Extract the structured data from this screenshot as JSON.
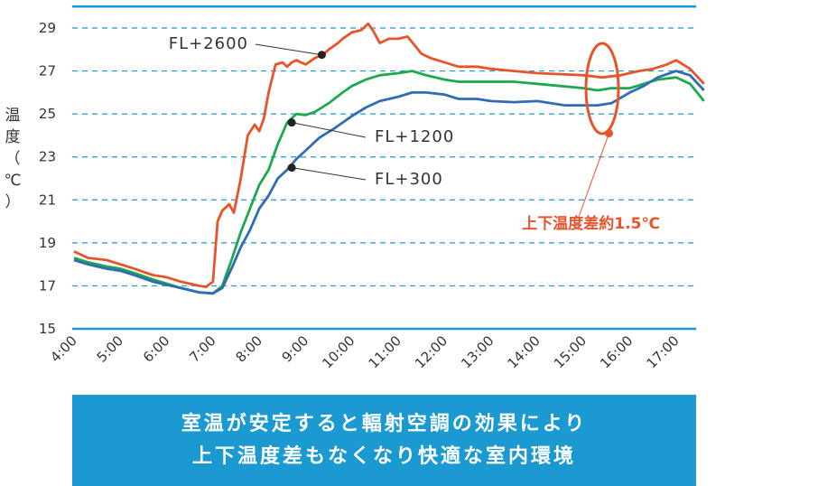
{
  "chart_data": {
    "type": "line",
    "ylabel": "温度（℃）",
    "ylim": [
      15,
      30
    ],
    "yticks": [
      "29",
      "27",
      "25",
      "23",
      "21",
      "19",
      "17",
      "15"
    ],
    "yticks_values": [
      29,
      27,
      25,
      23,
      21,
      19,
      17,
      15
    ],
    "xlim": [
      4,
      17.6
    ],
    "xticks": [
      "4:00",
      "5:00",
      "6:00",
      "7:00",
      "8:00",
      "9:00",
      "10:00",
      "11:00",
      "12:00",
      "13:00",
      "14:00",
      "15:00",
      "16:00",
      "17:00"
    ],
    "grid": "horizontal dashed",
    "series": [
      {
        "name": "FL+2600",
        "color": "#e8542a",
        "x": [
          4.0,
          4.3,
          4.7,
          5.0,
          5.3,
          5.7,
          6.0,
          6.3,
          6.7,
          6.85,
          7.0,
          7.1,
          7.2,
          7.35,
          7.45,
          7.6,
          7.75,
          7.9,
          8.0,
          8.1,
          8.2,
          8.35,
          8.5,
          8.6,
          8.7,
          8.8,
          9.0,
          9.2,
          9.4,
          9.5,
          9.7,
          9.8,
          10.0,
          10.2,
          10.35,
          10.45,
          10.6,
          10.8,
          11.0,
          11.2,
          11.5,
          11.7,
          12.0,
          12.3,
          12.7,
          13.0,
          13.5,
          14.0,
          14.5,
          15.0,
          15.4,
          15.8,
          16.2,
          16.5,
          16.8,
          17.0,
          17.3,
          17.6
        ],
        "values": [
          18.6,
          18.3,
          18.2,
          18.0,
          17.8,
          17.5,
          17.4,
          17.2,
          17.0,
          16.95,
          17.2,
          20.0,
          20.5,
          20.8,
          20.4,
          22.0,
          24.0,
          24.5,
          24.2,
          24.8,
          26.0,
          27.3,
          27.4,
          27.2,
          27.4,
          27.5,
          27.3,
          27.6,
          27.8,
          28.0,
          28.3,
          28.5,
          28.8,
          28.9,
          29.2,
          28.9,
          28.3,
          28.5,
          28.5,
          28.6,
          27.8,
          27.6,
          27.4,
          27.2,
          27.2,
          27.1,
          27.0,
          26.9,
          26.85,
          26.8,
          26.7,
          26.8,
          27.0,
          27.1,
          27.3,
          27.5,
          27.1,
          26.4
        ]
      },
      {
        "name": "FL+1200",
        "color": "#1fa84f",
        "x": [
          4.0,
          4.3,
          4.7,
          5.0,
          5.3,
          5.7,
          6.0,
          6.3,
          6.7,
          7.0,
          7.2,
          7.4,
          7.6,
          7.8,
          8.0,
          8.2,
          8.4,
          8.6,
          8.8,
          9.0,
          9.2,
          9.5,
          9.8,
          10.0,
          10.3,
          10.6,
          11.0,
          11.3,
          11.6,
          12.0,
          12.3,
          12.7,
          13.0,
          13.5,
          14.0,
          14.5,
          15.0,
          15.3,
          15.6,
          16.0,
          16.3,
          16.6,
          17.0,
          17.3,
          17.6
        ],
        "values": [
          18.3,
          18.1,
          17.9,
          17.8,
          17.6,
          17.3,
          17.1,
          16.9,
          16.7,
          16.65,
          17.0,
          18.2,
          19.5,
          20.6,
          21.7,
          22.4,
          23.6,
          24.6,
          25.0,
          24.95,
          25.1,
          25.5,
          26.0,
          26.3,
          26.6,
          26.8,
          26.9,
          27.0,
          26.8,
          26.6,
          26.5,
          26.5,
          26.5,
          26.5,
          26.4,
          26.3,
          26.2,
          26.1,
          26.2,
          26.2,
          26.4,
          26.6,
          26.7,
          26.4,
          25.6
        ]
      },
      {
        "name": "FL+300",
        "color": "#2e6db4",
        "x": [
          4.0,
          4.3,
          4.7,
          5.0,
          5.3,
          5.7,
          6.0,
          6.3,
          6.7,
          7.0,
          7.2,
          7.4,
          7.6,
          7.8,
          8.0,
          8.2,
          8.4,
          8.6,
          8.8,
          9.0,
          9.3,
          9.6,
          10.0,
          10.3,
          10.6,
          11.0,
          11.3,
          11.6,
          12.0,
          12.3,
          12.7,
          13.0,
          13.5,
          14.0,
          14.3,
          14.6,
          15.0,
          15.3,
          15.6,
          16.0,
          16.3,
          16.6,
          17.0,
          17.3,
          17.6
        ],
        "values": [
          18.2,
          18.0,
          17.8,
          17.7,
          17.5,
          17.2,
          17.05,
          16.9,
          16.7,
          16.65,
          16.9,
          17.8,
          18.8,
          19.6,
          20.6,
          21.2,
          22.0,
          22.4,
          22.9,
          23.3,
          23.9,
          24.3,
          24.9,
          25.3,
          25.6,
          25.8,
          26.0,
          26.0,
          25.9,
          25.7,
          25.7,
          25.6,
          25.55,
          25.6,
          25.5,
          25.4,
          25.4,
          25.4,
          25.5,
          26.0,
          26.3,
          26.7,
          27.0,
          26.8,
          26.1
        ]
      }
    ],
    "annotations": [
      {
        "label": "FL+2600",
        "point": [
          9.35,
          27.75
        ]
      },
      {
        "label": "FL+1200",
        "point": [
          8.7,
          24.6
        ]
      },
      {
        "label": "FL+300",
        "point": [
          8.7,
          22.5
        ]
      },
      {
        "label": "上下温度差約1.5℃",
        "point": [
          15.55,
          24.1
        ]
      }
    ]
  },
  "banner": {
    "line1": "室温が安定すると輻射空調の効果により",
    "line2": "上下温度差もなくなり快適な室内環境"
  }
}
